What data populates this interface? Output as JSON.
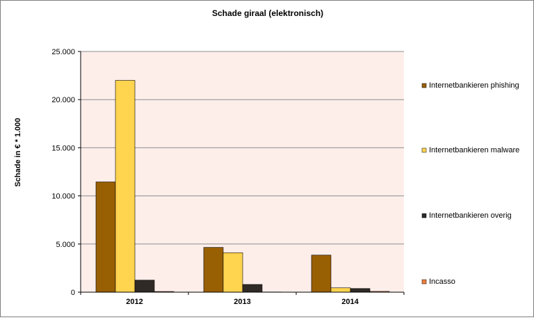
{
  "chart_data": {
    "type": "bar",
    "title": "Schade giraal (elektronisch)",
    "xlabel": "",
    "ylabel": "Schade in € * 1.000",
    "categories": [
      "2012",
      "2013",
      "2014"
    ],
    "ylim": [
      0,
      25000
    ],
    "yticks": [
      0,
      5000,
      10000,
      15000,
      20000,
      25000
    ],
    "ytick_labels": [
      "0",
      "5.000",
      "10.000",
      "15.000",
      "20.000",
      "25.000"
    ],
    "grid": true,
    "legend_position": "right",
    "plot_background": "#fdeeea",
    "series": [
      {
        "name": "Internetbankieren phishing",
        "color": "#995f03",
        "values": [
          11450,
          4650,
          3850
        ]
      },
      {
        "name": "Internetbankieren malware",
        "color": "#ffd44f",
        "values": [
          22000,
          4100,
          450
        ]
      },
      {
        "name": "Internetbankieren overig",
        "color": "#302a26",
        "values": [
          1250,
          800,
          380
        ]
      },
      {
        "name": "Incasso",
        "color": "#ef7f3f",
        "values": [
          70,
          20,
          80
        ]
      }
    ]
  }
}
